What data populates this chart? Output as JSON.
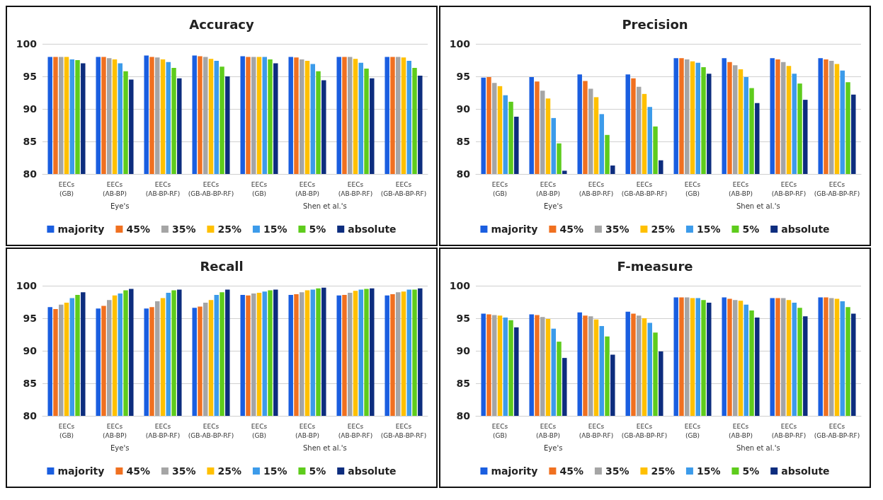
{
  "chart_data": [
    {
      "type": "bar",
      "title": "Accuracy",
      "categories": [
        "EECs\n(GB)",
        "EECs\n(AB-BP)",
        "EECs\n(AB-BP-RF)",
        "EECs\n(GB-AB-BP-RF)",
        "EECs\n(GB)",
        "EECs\n(AB-BP)",
        "EECs\n(AB-BP-RF)",
        "EECs\n(GB-AB-BP-RF)"
      ],
      "annotations": [
        "Eye's",
        "Shen et al.'s"
      ],
      "ylim": [
        80,
        100
      ],
      "yticks": [
        80,
        85,
        90,
        95,
        100
      ],
      "grid": "y",
      "legend": "bottom",
      "series": [
        {
          "name": "majority",
          "color": "#1a5ee0",
          "values": [
            98.0,
            98.0,
            98.2,
            98.2,
            98.1,
            98.0,
            98.0,
            98.0
          ]
        },
        {
          "name": "45%",
          "color": "#f07020",
          "values": [
            98.0,
            98.0,
            98.0,
            98.1,
            98.0,
            97.9,
            98.0,
            98.0
          ]
        },
        {
          "name": "35%",
          "color": "#a5a5a5",
          "values": [
            98.0,
            97.8,
            97.9,
            98.0,
            98.0,
            97.6,
            98.0,
            98.0
          ]
        },
        {
          "name": "25%",
          "color": "#ffc000",
          "values": [
            98.0,
            97.6,
            97.6,
            97.7,
            98.0,
            97.4,
            97.7,
            97.9
          ]
        },
        {
          "name": "15%",
          "color": "#3c9bea",
          "values": [
            97.6,
            97.0,
            97.2,
            97.4,
            98.0,
            96.9,
            97.1,
            97.4
          ]
        },
        {
          "name": "5%",
          "color": "#5ecc1c",
          "values": [
            97.5,
            95.8,
            96.3,
            96.5,
            97.6,
            95.8,
            96.2,
            96.3
          ]
        },
        {
          "name": "absolute",
          "color": "#0d2d7e",
          "values": [
            97.0,
            94.5,
            94.7,
            95.0,
            97.0,
            94.4,
            94.7,
            95.1
          ]
        }
      ]
    },
    {
      "type": "bar",
      "title": "Precision",
      "categories": [
        "EECs\n(GB)",
        "EECs\n(AB-BP)",
        "EECs\n(AB-BP-RF)",
        "EECs\n(GB-AB-BP-RF)",
        "EECs\n(GB)",
        "EECs\n(AB-BP)",
        "EECs\n(AB-BP-RF)",
        "EECs\n(GB-AB-BP-RF)"
      ],
      "annotations": [
        "Eye's",
        "Shen et al.'s"
      ],
      "ylim": [
        80,
        100
      ],
      "yticks": [
        80,
        85,
        90,
        95,
        100
      ],
      "grid": "y",
      "legend": "bottom",
      "series": [
        {
          "name": "majority",
          "color": "#1a5ee0",
          "values": [
            94.8,
            94.9,
            95.3,
            95.3,
            97.8,
            97.8,
            97.8,
            97.8
          ]
        },
        {
          "name": "45%",
          "color": "#f07020",
          "values": [
            94.9,
            94.2,
            94.3,
            94.7,
            97.8,
            97.2,
            97.6,
            97.6
          ]
        },
        {
          "name": "35%",
          "color": "#a5a5a5",
          "values": [
            94.0,
            92.8,
            93.1,
            93.4,
            97.6,
            96.7,
            97.2,
            97.4
          ]
        },
        {
          "name": "25%",
          "color": "#ffc000",
          "values": [
            93.5,
            91.6,
            91.8,
            92.3,
            97.3,
            96.1,
            96.6,
            96.9
          ]
        },
        {
          "name": "15%",
          "color": "#3c9bea",
          "values": [
            92.1,
            88.6,
            89.2,
            90.3,
            97.1,
            94.9,
            95.4,
            95.9
          ]
        },
        {
          "name": "5%",
          "color": "#5ecc1c",
          "values": [
            91.1,
            84.7,
            86.0,
            87.3,
            96.4,
            93.2,
            93.9,
            94.1
          ]
        },
        {
          "name": "absolute",
          "color": "#0d2d7e",
          "values": [
            88.8,
            80.5,
            81.3,
            82.1,
            95.4,
            90.9,
            91.4,
            92.2
          ]
        }
      ]
    },
    {
      "type": "bar",
      "title": "Recall",
      "categories": [
        "EECs\n(GB)",
        "EECs\n(AB-BP)",
        "EECs\n(AB-BP-RF)",
        "EECs\n(GB-AB-BP-RF)",
        "EECs\n(GB)",
        "EECs\n(AB-BP)",
        "EECs\n(AB-BP-RF)",
        "EECs\n(GB-AB-BP-RF)"
      ],
      "annotations": [
        "Eye's",
        "Shen et al.'s"
      ],
      "ylim": [
        80,
        100
      ],
      "yticks": [
        80,
        85,
        90,
        95,
        100
      ],
      "grid": "y",
      "legend": "bottom",
      "series": [
        {
          "name": "majority",
          "color": "#1a5ee0",
          "values": [
            96.7,
            96.5,
            96.5,
            96.6,
            98.6,
            98.6,
            98.5,
            98.5
          ]
        },
        {
          "name": "45%",
          "color": "#f07020",
          "values": [
            96.4,
            96.9,
            96.7,
            96.8,
            98.5,
            98.7,
            98.6,
            98.7
          ]
        },
        {
          "name": "35%",
          "color": "#a5a5a5",
          "values": [
            97.1,
            97.8,
            97.6,
            97.4,
            98.8,
            99.0,
            98.9,
            99.0
          ]
        },
        {
          "name": "25%",
          "color": "#ffc000",
          "values": [
            97.4,
            98.5,
            98.1,
            97.8,
            98.9,
            99.3,
            99.2,
            99.1
          ]
        },
        {
          "name": "15%",
          "color": "#3c9bea",
          "values": [
            98.1,
            98.8,
            98.9,
            98.6,
            99.1,
            99.4,
            99.4,
            99.4
          ]
        },
        {
          "name": "5%",
          "color": "#5ecc1c",
          "values": [
            98.6,
            99.3,
            99.3,
            99.0,
            99.3,
            99.6,
            99.5,
            99.4
          ]
        },
        {
          "name": "absolute",
          "color": "#0d2d7e",
          "values": [
            99.0,
            99.5,
            99.4,
            99.4,
            99.4,
            99.7,
            99.6,
            99.6
          ]
        }
      ]
    },
    {
      "type": "bar",
      "title": "F-measure",
      "categories": [
        "EECs\n(GB)",
        "EECs\n(AB-BP)",
        "EECs\n(AB-BP-RF)",
        "EECs\n(GB-AB-BP-RF)",
        "EECs\n(GB)",
        "EECs\n(AB-BP)",
        "EECs\n(AB-BP-RF)",
        "EECs\n(GB-AB-BP-RF)"
      ],
      "annotations": [
        "Eye's",
        "Shen et al.'s"
      ],
      "ylim": [
        80,
        100
      ],
      "yticks": [
        80,
        85,
        90,
        95,
        100
      ],
      "grid": "y",
      "legend": "bottom",
      "series": [
        {
          "name": "majority",
          "color": "#1a5ee0",
          "values": [
            95.7,
            95.6,
            95.9,
            96.0,
            98.2,
            98.2,
            98.1,
            98.2
          ]
        },
        {
          "name": "45%",
          "color": "#f07020",
          "values": [
            95.6,
            95.5,
            95.4,
            95.7,
            98.2,
            98.0,
            98.1,
            98.2
          ]
        },
        {
          "name": "35%",
          "color": "#a5a5a5",
          "values": [
            95.5,
            95.2,
            95.3,
            95.4,
            98.2,
            97.8,
            98.1,
            98.1
          ]
        },
        {
          "name": "25%",
          "color": "#ffc000",
          "values": [
            95.4,
            94.9,
            94.8,
            95.0,
            98.1,
            97.7,
            97.8,
            98.0
          ]
        },
        {
          "name": "15%",
          "color": "#3c9bea",
          "values": [
            95.1,
            93.4,
            93.8,
            94.3,
            98.1,
            97.1,
            97.4,
            97.6
          ]
        },
        {
          "name": "5%",
          "color": "#5ecc1c",
          "values": [
            94.7,
            91.4,
            92.2,
            92.8,
            97.8,
            96.2,
            96.6,
            96.7
          ]
        },
        {
          "name": "absolute",
          "color": "#0d2d7e",
          "values": [
            93.6,
            88.9,
            89.4,
            89.9,
            97.4,
            95.1,
            95.3,
            95.7
          ]
        }
      ]
    }
  ]
}
